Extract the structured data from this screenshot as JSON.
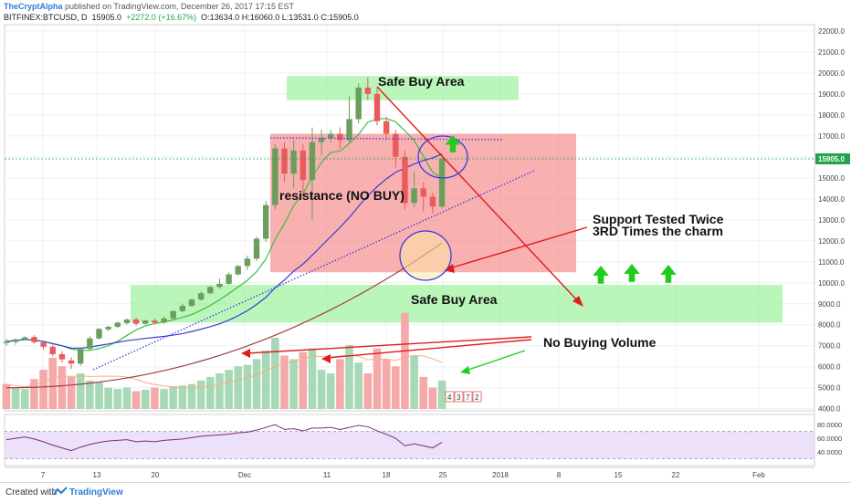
{
  "header": {
    "author": "TheCryptAlpha",
    "published": "published on TradingView.com, December 26, 2017 17:15 EST",
    "symbol": "BITFINEX:BTCUSD, D",
    "last": "15905.0",
    "change": "+2272.0 (+16.67%)",
    "ohlc": "O:13634.0 H:16060.0 L:13531.0 C:15905.0"
  },
  "footer": {
    "created": "Created with",
    "brand": "TradingView"
  },
  "colors": {
    "up": "#6a9e5b",
    "down": "#e85c5c",
    "vol_up": "#a7d9b6",
    "vol_down": "#f5a9a9",
    "green_zone": "#8ff08f",
    "red_zone": "#f57f7f",
    "arrow_red": "#e01c1c",
    "arrow_green": "#1fcc1f",
    "ma_fast": "#3bbf3b",
    "ma_mid": "#3a3ad6",
    "ma_slow": "#a04040",
    "rsi": "#7a2d7a",
    "price_tag": "#22a34a"
  },
  "icons": [
    "green-up-arrow-icon",
    "tradingview-logo-icon"
  ],
  "chart_data": {
    "type": "candlestick",
    "symbol": "BITFINEX:BTCUSD",
    "timeframe": "D",
    "price_scale": [
      4000,
      22000
    ],
    "last_price": "15905.0",
    "y_ticks": [
      "4000.0",
      "5000.0",
      "6000.0",
      "7000.0",
      "8000.0",
      "9000.0",
      "10000.0",
      "11000.0",
      "12000.0",
      "13000.0",
      "14000.0",
      "15000.0",
      "16000.0",
      "17000.0",
      "18000.0",
      "19000.0",
      "20000.0",
      "21000.0",
      "22000.0"
    ],
    "x_ticks": [
      "7",
      "13",
      "20",
      "Dec",
      "11",
      "18",
      "25",
      "2018",
      "8",
      "15",
      "22",
      "Feb"
    ],
    "rsi_ticks": [
      "80.0000",
      "60.0000",
      "40.0000"
    ],
    "rsi_levels": [
      70,
      30
    ],
    "candles_ohlc": [
      [
        7130,
        7330,
        7000,
        7200
      ],
      [
        7180,
        7350,
        7050,
        7300
      ],
      [
        7300,
        7450,
        7250,
        7400
      ],
      [
        7420,
        7500,
        7100,
        7170
      ],
      [
        7160,
        7250,
        6800,
        6950
      ],
      [
        6950,
        7050,
        6500,
        6600
      ],
      [
        6600,
        6750,
        6200,
        6350
      ],
      [
        6300,
        6450,
        5900,
        6150
      ],
      [
        6150,
        6900,
        6050,
        6850
      ],
      [
        6850,
        7450,
        6750,
        7350
      ],
      [
        7350,
        7850,
        7300,
        7800
      ],
      [
        7780,
        7950,
        7700,
        7900
      ],
      [
        7900,
        8150,
        7850,
        8100
      ],
      [
        8080,
        8300,
        8000,
        8250
      ],
      [
        8250,
        8350,
        7950,
        8050
      ],
      [
        8050,
        8250,
        8000,
        8200
      ],
      [
        8200,
        8300,
        8050,
        8100
      ],
      [
        8100,
        8400,
        8050,
        8300
      ],
      [
        8300,
        8700,
        8250,
        8650
      ],
      [
        8650,
        9000,
        8600,
        8900
      ],
      [
        8900,
        9250,
        8850,
        9200
      ],
      [
        9200,
        9600,
        9150,
        9500
      ],
      [
        9500,
        9850,
        9450,
        9800
      ],
      [
        9800,
        10200,
        9700,
        9950
      ],
      [
        9950,
        10500,
        9900,
        10400
      ],
      [
        10400,
        10850,
        10350,
        10800
      ],
      [
        10800,
        11300,
        10600,
        11150
      ],
      [
        11150,
        12200,
        11050,
        12100
      ],
      [
        12100,
        13900,
        11950,
        13700
      ],
      [
        13700,
        16600,
        13500,
        16400
      ],
      [
        16400,
        16700,
        14800,
        15200
      ],
      [
        15200,
        16800,
        14500,
        16300
      ],
      [
        16300,
        16600,
        14000,
        14900
      ],
      [
        14900,
        17400,
        13000,
        16700
      ],
      [
        16700,
        17300,
        16100,
        16900
      ],
      [
        16900,
        17300,
        16700,
        17100
      ],
      [
        17100,
        17400,
        16400,
        16800
      ],
      [
        16800,
        18900,
        16600,
        17800
      ],
      [
        17800,
        19500,
        17600,
        19300
      ],
      [
        19300,
        19800,
        18700,
        19000
      ],
      [
        19000,
        19300,
        17500,
        17700
      ],
      [
        17700,
        17900,
        16800,
        17100
      ],
      [
        17100,
        17300,
        15500,
        16000
      ],
      [
        16000,
        16300,
        13500,
        13800
      ],
      [
        13800,
        15300,
        13600,
        14500
      ],
      [
        14500,
        14800,
        13400,
        14100
      ],
      [
        14100,
        14300,
        13300,
        13634
      ],
      [
        13634,
        16060,
        13531,
        15905
      ]
    ],
    "volume_up": [
      false,
      true,
      true,
      false,
      false,
      false,
      false,
      false,
      true,
      true,
      true,
      true,
      true,
      true,
      false,
      true,
      false,
      true,
      true,
      true,
      true,
      true,
      true,
      true,
      true,
      true,
      true,
      true,
      true,
      true,
      false,
      true,
      false,
      true,
      true,
      true,
      false,
      true,
      true,
      false,
      false,
      false,
      false,
      false,
      true,
      false,
      false,
      true
    ],
    "volume_rel": [
      0.35,
      0.3,
      0.28,
      0.42,
      0.55,
      0.72,
      0.6,
      0.45,
      0.5,
      0.4,
      0.38,
      0.3,
      0.28,
      0.3,
      0.25,
      0.27,
      0.3,
      0.28,
      0.32,
      0.33,
      0.35,
      0.4,
      0.45,
      0.5,
      0.55,
      0.6,
      0.62,
      0.7,
      0.82,
      1.0,
      0.75,
      0.7,
      0.8,
      0.85,
      0.55,
      0.5,
      0.7,
      0.9,
      0.65,
      0.5,
      0.85,
      0.7,
      0.6,
      1.35,
      0.75,
      0.45,
      0.3,
      0.4
    ],
    "rsi_values": [
      58,
      60,
      62,
      59,
      55,
      50,
      46,
      42,
      47,
      51,
      54,
      56,
      57,
      58,
      55,
      56,
      55,
      57,
      58,
      59,
      61,
      63,
      64,
      65,
      66,
      68,
      69,
      72,
      76,
      80,
      73,
      74,
      71,
      75,
      75,
      76,
      73,
      76,
      79,
      77,
      71,
      66,
      60,
      49,
      52,
      49,
      46,
      54
    ],
    "annotations": [
      {
        "name": "safe-buy-area-top",
        "text": "Safe Buy Area",
        "from": 18700,
        "to": 19850,
        "color": "#8ff08f"
      },
      {
        "name": "safe-buy-area-bottom",
        "text": "Safe Buy Area",
        "from": 8100,
        "to": 9900,
        "color": "#8ff08f"
      },
      {
        "name": "resistance-zone",
        "text": "resistance (NO BUY)",
        "from": 10500,
        "to": 17100,
        "color": "#f57f7f"
      }
    ],
    "callouts": {
      "support": [
        "Support Tested Twice",
        "3RD Times the charm"
      ],
      "volume": "No Buying Volume"
    },
    "counter_labels": [
      "4",
      "3",
      "7",
      "2"
    ]
  }
}
